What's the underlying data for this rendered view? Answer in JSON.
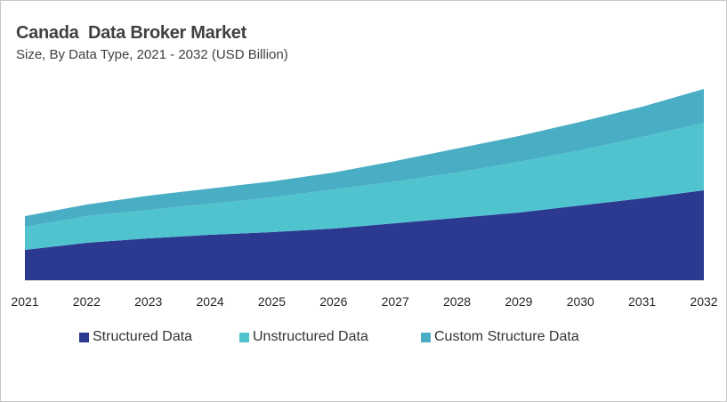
{
  "chart_data": {
    "type": "area",
    "stacked": true,
    "title": "Canada  Data Broker Market",
    "subtitle": "Size, By Data Type, 2021 - 2032 (USD Billion)",
    "xlabel": "",
    "ylabel": "",
    "categories": [
      "2021",
      "2022",
      "2023",
      "2024",
      "2025",
      "2026",
      "2027",
      "2028",
      "2029",
      "2030",
      "2031",
      "2032"
    ],
    "series": [
      {
        "name": "Structured Data",
        "color": "#2B3990",
        "values": [
          1.7,
          2.1,
          2.35,
          2.55,
          2.7,
          2.9,
          3.2,
          3.5,
          3.8,
          4.2,
          4.6,
          5.05
        ]
      },
      {
        "name": "Unstructured Data",
        "color": "#4FC4CF",
        "values": [
          1.3,
          1.5,
          1.6,
          1.75,
          1.95,
          2.2,
          2.35,
          2.55,
          2.85,
          3.1,
          3.45,
          3.8
        ]
      },
      {
        "name": "Custom Structure Data",
        "color": "#49ADC4",
        "values": [
          0.6,
          0.65,
          0.8,
          0.85,
          0.9,
          0.95,
          1.15,
          1.35,
          1.45,
          1.6,
          1.7,
          1.9
        ]
      }
    ],
    "ylim": [
      0,
      12
    ],
    "y_axis_visible": false,
    "grid": false,
    "legend_position": "bottom"
  }
}
